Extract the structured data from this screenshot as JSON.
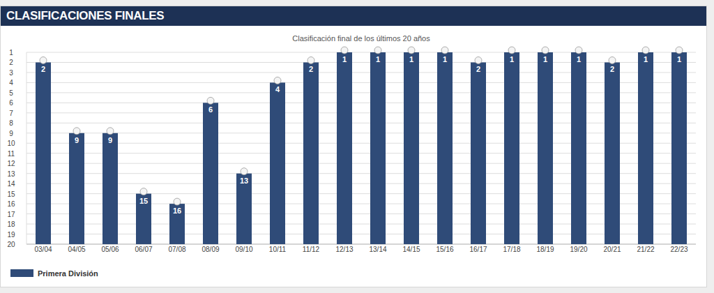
{
  "chart_data": {
    "type": "bar",
    "title": "CLASIFICACIONES FINALES",
    "subtitle": "Clasificación final de los últimos 20 años",
    "categories": [
      "03/04",
      "04/05",
      "05/06",
      "06/07",
      "07/08",
      "08/09",
      "09/10",
      "10/11",
      "11/12",
      "12/13",
      "13/14",
      "14/15",
      "15/16",
      "16/17",
      "17/18",
      "18/19",
      "19/20",
      "20/21",
      "21/22",
      "22/23"
    ],
    "series": [
      {
        "name": "Primera División",
        "color": "#2f4b78",
        "values": [
          2,
          9,
          9,
          15,
          16,
          6,
          13,
          4,
          2,
          1,
          1,
          1,
          1,
          2,
          1,
          1,
          1,
          2,
          1,
          1
        ]
      }
    ],
    "ylim": [
      20,
      1
    ],
    "yticks": [
      1,
      2,
      3,
      4,
      5,
      6,
      7,
      8,
      9,
      10,
      11,
      12,
      13,
      14,
      15,
      16,
      17,
      18,
      19,
      20
    ],
    "grid": true,
    "data_labels": true,
    "legend": "bottom-left"
  }
}
